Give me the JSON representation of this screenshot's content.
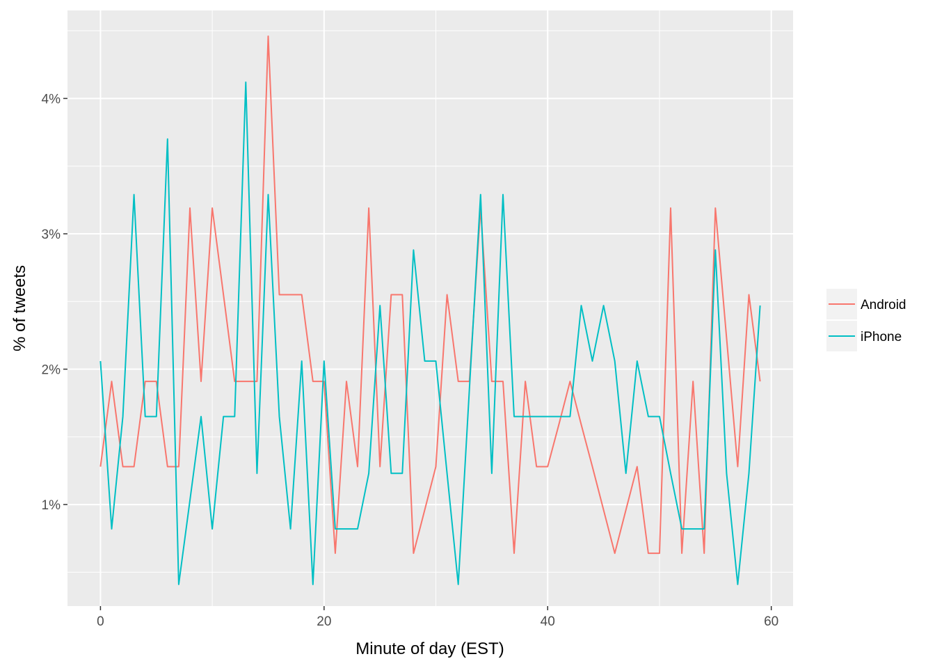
{
  "chart_data": {
    "type": "line",
    "title": "",
    "xlabel": "Minute of day (EST)",
    "ylabel": "% of tweets",
    "xlim": [
      -2.95,
      61.95
    ],
    "ylim": [
      0.25,
      4.65
    ],
    "x_ticks": [
      0,
      20,
      40,
      60
    ],
    "x_tick_labels": [
      "0",
      "20",
      "40",
      "60"
    ],
    "y_ticks": [
      1,
      2,
      3,
      4
    ],
    "y_tick_labels": [
      "1%",
      "2%",
      "3%",
      "4%"
    ],
    "grid": true,
    "legend_position": "right",
    "x": [
      0,
      1,
      2,
      3,
      4,
      5,
      6,
      7,
      8,
      9,
      10,
      11,
      12,
      13,
      14,
      15,
      16,
      17,
      18,
      19,
      20,
      21,
      22,
      23,
      24,
      25,
      26,
      27,
      28,
      29,
      30,
      31,
      32,
      33,
      34,
      35,
      36,
      37,
      38,
      39,
      40,
      41,
      42,
      43,
      44,
      45,
      46,
      47,
      48,
      49,
      50,
      51,
      52,
      53,
      54,
      55,
      56,
      57,
      58,
      59
    ],
    "series": [
      {
        "name": "Android",
        "color": "#F8766D",
        "values": [
          1.28,
          1.91,
          1.28,
          1.28,
          1.91,
          1.91,
          1.28,
          1.28,
          3.19,
          1.91,
          3.19,
          2.55,
          1.91,
          1.91,
          1.91,
          4.46,
          2.55,
          2.55,
          2.55,
          1.91,
          1.91,
          0.64,
          1.91,
          1.28,
          3.19,
          1.28,
          2.55,
          2.55,
          0.64,
          0.96,
          1.28,
          2.55,
          1.91,
          1.91,
          3.19,
          1.91,
          1.91,
          0.64,
          1.91,
          1.28,
          1.28,
          1.59,
          1.91,
          1.59,
          1.28,
          0.96,
          0.64,
          0.96,
          1.28,
          0.64,
          0.64,
          3.19,
          0.64,
          1.91,
          0.64,
          3.19,
          2.23,
          1.28,
          2.55,
          1.91
        ]
      },
      {
        "name": "iPhone",
        "color": "#00BFC4",
        "values": [
          2.06,
          0.82,
          1.65,
          3.29,
          1.65,
          1.65,
          3.7,
          0.41,
          1.03,
          1.65,
          0.82,
          1.65,
          1.65,
          4.12,
          1.23,
          3.29,
          1.65,
          0.82,
          2.06,
          0.41,
          2.06,
          0.82,
          0.82,
          0.82,
          1.23,
          2.47,
          1.23,
          1.23,
          2.88,
          2.06,
          2.06,
          1.23,
          0.41,
          1.85,
          3.29,
          1.23,
          3.29,
          1.65,
          1.65,
          1.65,
          1.65,
          1.65,
          1.65,
          2.47,
          2.06,
          2.47,
          2.06,
          1.23,
          2.06,
          1.65,
          1.65,
          1.23,
          0.82,
          0.82,
          0.82,
          2.88,
          1.23,
          0.41,
          1.23,
          2.47
        ]
      }
    ]
  },
  "style": {
    "panel_background": "#EBEBEB",
    "grid_color": "#FFFFFF"
  }
}
